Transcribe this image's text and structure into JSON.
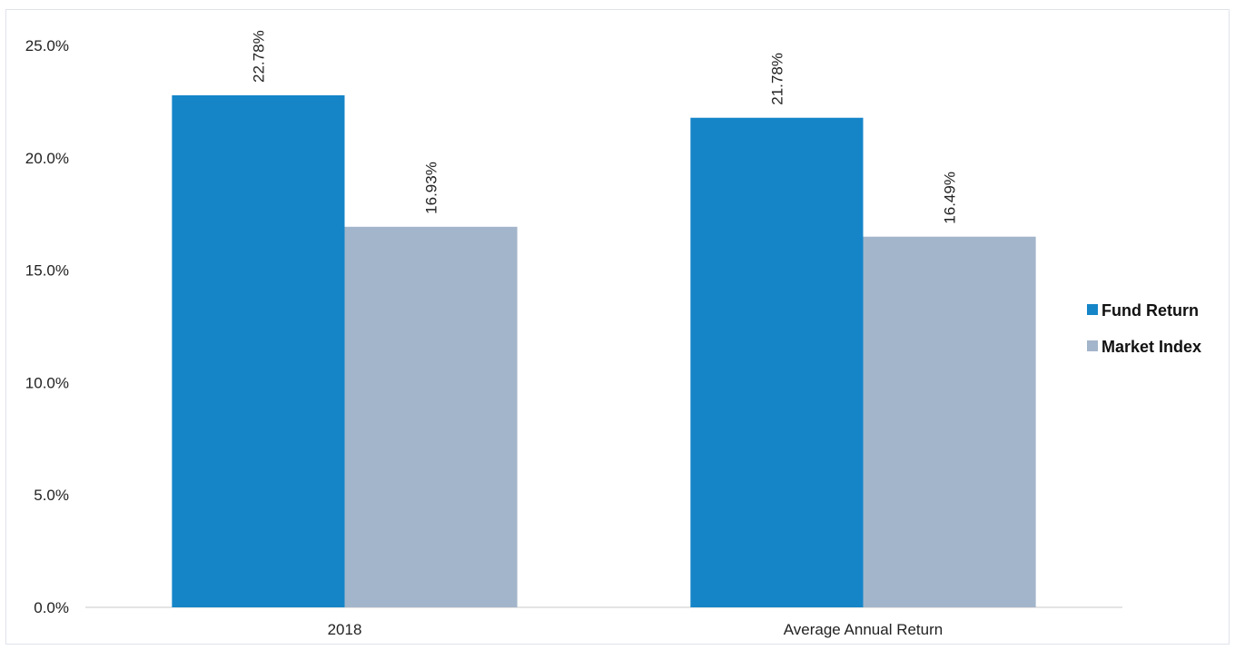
{
  "chart_data": {
    "type": "bar",
    "categories": [
      "2018",
      "Average Annual Return"
    ],
    "series": [
      {
        "name": "Fund Return",
        "values": [
          22.78,
          21.78
        ],
        "labels": [
          "22.78%",
          "21.78%"
        ],
        "color": "#1585c8"
      },
      {
        "name": "Market Index",
        "values": [
          16.93,
          16.49
        ],
        "labels": [
          "16.93%",
          "16.49%"
        ],
        "color": "#a3b5ca"
      }
    ],
    "ylim": [
      0,
      25
    ],
    "yticks": [
      0,
      5,
      10,
      15,
      20,
      25
    ],
    "ytick_labels": [
      "0.0%",
      "5.0%",
      "10.0%",
      "15.0%",
      "20.0%",
      "25.0%"
    ],
    "legend_position": "right",
    "grid": false
  }
}
